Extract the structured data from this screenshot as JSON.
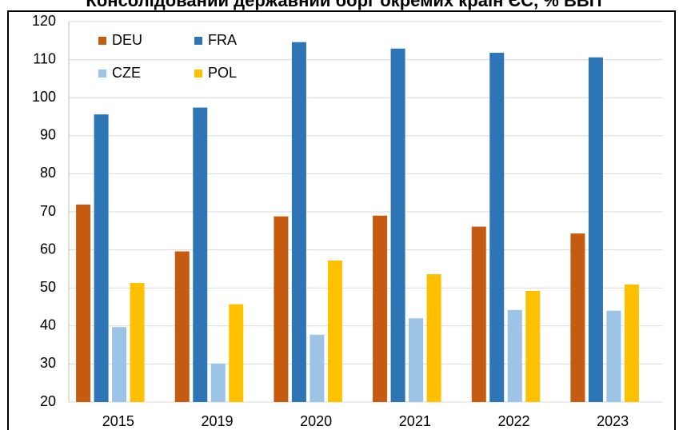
{
  "chart_data": {
    "type": "bar",
    "title": "Консолідований державний борг окремих країн ЄС, % ВВП",
    "categories": [
      "2015",
      "2019",
      "2020",
      "2021",
      "2022",
      "2023"
    ],
    "series": [
      {
        "name": "DEU",
        "color": "#c55a11",
        "values": [
          71.9,
          59.6,
          68.8,
          69.0,
          66.1,
          64.3
        ]
      },
      {
        "name": "FRA",
        "color": "#2e75b6",
        "values": [
          95.6,
          97.4,
          114.6,
          112.9,
          111.8,
          110.6
        ]
      },
      {
        "name": "CZE",
        "color": "#9dc3e6",
        "values": [
          39.7,
          30.1,
          37.7,
          42.0,
          44.2,
          44.0
        ]
      },
      {
        "name": "POL",
        "color": "#ffc000",
        "values": [
          51.3,
          45.7,
          57.2,
          53.6,
          49.2,
          50.9
        ]
      }
    ],
    "ylim": [
      20,
      120
    ],
    "yticks": [
      20,
      30,
      40,
      50,
      60,
      70,
      80,
      90,
      100,
      110,
      120
    ],
    "grid": true,
    "legend": "top-left"
  }
}
